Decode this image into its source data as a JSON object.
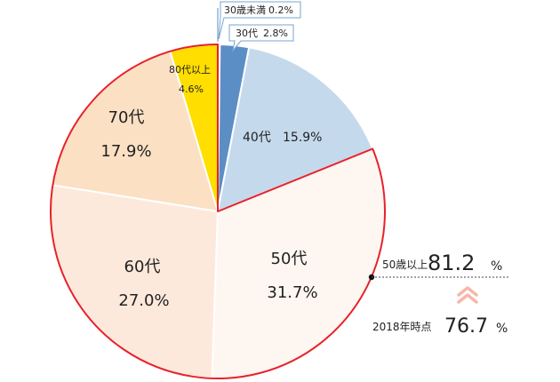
{
  "chart_data": {
    "type": "pie",
    "slices": [
      {
        "label": "30歳未満",
        "value": 0.2,
        "value_text": "0.2%",
        "color": "#d9e4f1",
        "highlight": false
      },
      {
        "label": "30代",
        "value": 2.8,
        "value_text": "2.8%",
        "color": "#5b8ec5",
        "highlight": false
      },
      {
        "label": "40代",
        "value": 15.9,
        "value_text": "15.9%",
        "color": "#c5d9ed",
        "highlight": false
      },
      {
        "label": "50代",
        "value": 31.7,
        "value_text": "31.7%",
        "color": "#fef6f0",
        "highlight": true
      },
      {
        "label": "60代",
        "value": 27.0,
        "value_text": "27.0%",
        "color": "#fde9db",
        "highlight": true
      },
      {
        "label": "70代",
        "value": 17.9,
        "value_text": "17.9%",
        "color": "#fbe0c3",
        "highlight": true
      },
      {
        "label": "80代以上",
        "value": 4.6,
        "value_text": "4.6%",
        "color": "#ffde00",
        "highlight": true
      }
    ],
    "highlight_color": "#e8212b",
    "callout": {
      "label": "50歳以上",
      "value": "81.2",
      "unit": "%",
      "compare_label": "2018年時点",
      "compare_value": "76.7",
      "compare_unit": "%",
      "arrow_color": "#f6b7aa"
    }
  }
}
